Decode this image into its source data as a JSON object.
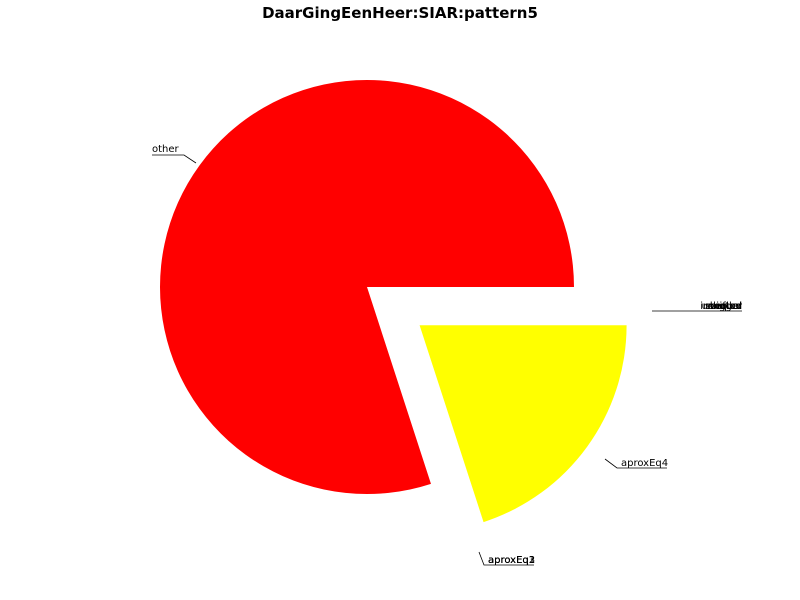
{
  "chart_data": {
    "type": "pie",
    "title": "DaarGingEenHeer:SIAR:pattern5",
    "slices": [
      {
        "label": "other",
        "value": 80,
        "color": "#ff0000",
        "exploded": false
      },
      {
        "label": "aproxEq4",
        "value": 20,
        "color": "#ffff00",
        "exploded": true
      },
      {
        "label": "aproxEq1",
        "value": 0,
        "color": "#ff0000",
        "exploded": false
      },
      {
        "label": "aproxEq2",
        "value": 0,
        "color": "#ff0000",
        "exploded": false
      },
      {
        "label": "aproxEq3",
        "value": 0,
        "color": "#ff0000",
        "exploded": false
      },
      {
        "label": "equal",
        "value": 0,
        "color": "#ff0000",
        "exploded": false
      },
      {
        "label": "unequal",
        "value": 0,
        "color": "#ff0000",
        "exploded": false
      },
      {
        "label": "bigger",
        "value": 0,
        "color": "#ff0000",
        "exploded": false
      },
      {
        "label": "smaller",
        "value": 0,
        "color": "#ff0000",
        "exploded": false
      },
      {
        "label": "inverted",
        "value": 0,
        "color": "#ff0000",
        "exploded": false
      },
      {
        "label": "shifted",
        "value": 0,
        "color": "#ff0000",
        "exploded": false
      }
    ],
    "legend": "none",
    "grid": false
  }
}
